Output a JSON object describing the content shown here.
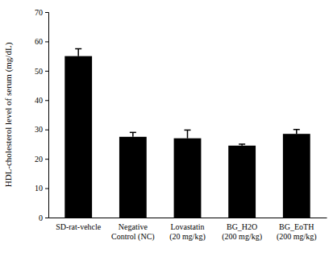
{
  "chart_data": {
    "type": "bar",
    "y_label": "HDL-cholesterol level of serum (mg/dL)",
    "categories": [
      "SD-rat-vehcle",
      "Negative\nControl (NC)",
      "Lovastatin\n(20 mg/kg)",
      "BG_H2O\n(200 mg/kg)",
      "BG_EoTH\n(200 mg/kg)"
    ],
    "values": [
      55,
      27.5,
      27,
      24.5,
      28.5
    ],
    "errors": [
      2.5,
      1.5,
      2.8,
      0.5,
      1.5
    ],
    "color": "#000000",
    "ylim": [
      0,
      70
    ],
    "yticks": [
      0,
      10,
      20,
      30,
      40,
      50,
      60,
      70
    ],
    "grid": false
  }
}
